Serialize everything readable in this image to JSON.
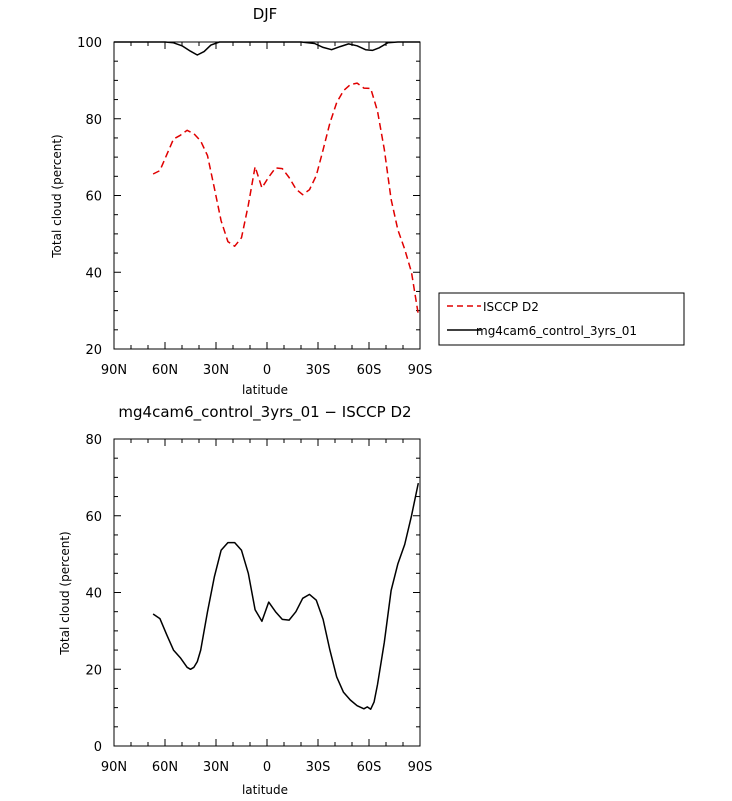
{
  "chart_data": [
    {
      "type": "line",
      "title": "DJF",
      "xlabel": "latitude",
      "ylabel": "Total cloud (percent)",
      "xlim": [
        90,
        -90
      ],
      "ylim": [
        20,
        100
      ],
      "x_ticks": [
        90,
        60,
        30,
        0,
        -30,
        -60,
        -90
      ],
      "x_tick_labels": [
        "90N",
        "60N",
        "30N",
        "0",
        "30S",
        "60S",
        "90S"
      ],
      "y_ticks": [
        20,
        40,
        60,
        80,
        100
      ],
      "y_tick_labels": [
        "20",
        "40",
        "60",
        "80",
        "100"
      ],
      "legend": "right",
      "colors": {
        "isccp": "#e00000",
        "model": "#000000"
      },
      "series": [
        {
          "name": "ISCCP D2",
          "style": "dashed",
          "color": "#e00000",
          "x": [
            67,
            63,
            59,
            55,
            51,
            47,
            43,
            39,
            35,
            31,
            27,
            23,
            19,
            15,
            11,
            7,
            3,
            -1,
            -5,
            -9,
            -13,
            -17,
            -21,
            -25,
            -29,
            -33,
            -37,
            -41,
            -45,
            -49,
            -53,
            -57,
            -61,
            -65,
            -69,
            -73,
            -77,
            -81,
            -85,
            -89
          ],
          "values": [
            65.6,
            66.5,
            70.6,
            74.7,
            75.7,
            77.0,
            76.1,
            74.2,
            70.4,
            62.0,
            53.4,
            48.0,
            46.8,
            49.0,
            57.5,
            67.5,
            62.0,
            64.8,
            67.2,
            67.0,
            64.7,
            61.7,
            60.2,
            61.5,
            65.2,
            71.9,
            78.9,
            84.2,
            87.3,
            88.9,
            89.3,
            88.0,
            87.9,
            82.0,
            72.0,
            59.0,
            51.0,
            46.0,
            40.0,
            29.0
          ]
        },
        {
          "name": "mg4cam6_control_3yrs_01",
          "style": "solid",
          "color": "#000000",
          "x": [
            90,
            60,
            55,
            50,
            45,
            41,
            37,
            33,
            28,
            20,
            0,
            -20,
            -28,
            -33,
            -38,
            -43,
            -48,
            -53,
            -58,
            -62,
            -66,
            -71,
            -77,
            -90
          ],
          "values": [
            100,
            100,
            99.8,
            99.0,
            97.6,
            96.6,
            97.5,
            99.2,
            100,
            100,
            100,
            100,
            99.6,
            98.6,
            98.0,
            98.8,
            99.5,
            99.0,
            98.0,
            97.8,
            98.5,
            99.8,
            100,
            100
          ]
        }
      ]
    },
    {
      "type": "line",
      "title": "mg4cam6_control_3yrs_01 − ISCCP D2",
      "xlabel": "latitude",
      "ylabel": "Total cloud (percent)",
      "xlim": [
        90,
        -90
      ],
      "ylim": [
        0,
        80
      ],
      "x_ticks": [
        90,
        60,
        30,
        0,
        -30,
        -60,
        -90
      ],
      "x_tick_labels": [
        "90N",
        "60N",
        "30N",
        "0",
        "30S",
        "60S",
        "90S"
      ],
      "y_ticks": [
        0,
        20,
        40,
        60,
        80
      ],
      "y_tick_labels": [
        "0",
        "20",
        "40",
        "60",
        "80"
      ],
      "series": [
        {
          "style": "solid",
          "color": "#000000",
          "x": [
            67,
            63,
            59,
            55,
            51,
            47,
            45,
            43,
            41,
            39,
            35,
            31,
            27,
            23,
            19,
            15,
            11,
            7,
            3,
            -1,
            -5,
            -9,
            -13,
            -17,
            -21,
            -25,
            -29,
            -33,
            -37,
            -41,
            -45,
            -49,
            -53,
            -57,
            -59,
            -61,
            -63,
            -65,
            -69,
            -73,
            -77,
            -81,
            -85,
            -89
          ],
          "values": [
            34.4,
            33.2,
            29.0,
            25.0,
            23.0,
            20.5,
            20.0,
            20.5,
            22.0,
            25.0,
            35.0,
            44.0,
            51.0,
            53.0,
            53.0,
            51.0,
            45.0,
            35.5,
            32.5,
            37.5,
            35.0,
            33.0,
            32.8,
            35.0,
            38.5,
            39.5,
            38.0,
            33.0,
            25.0,
            18.0,
            14.0,
            12.0,
            10.5,
            9.7,
            10.2,
            9.6,
            11.5,
            16.0,
            27.0,
            40.5,
            47.5,
            52.5,
            60.0,
            68.5
          ]
        }
      ]
    }
  ]
}
